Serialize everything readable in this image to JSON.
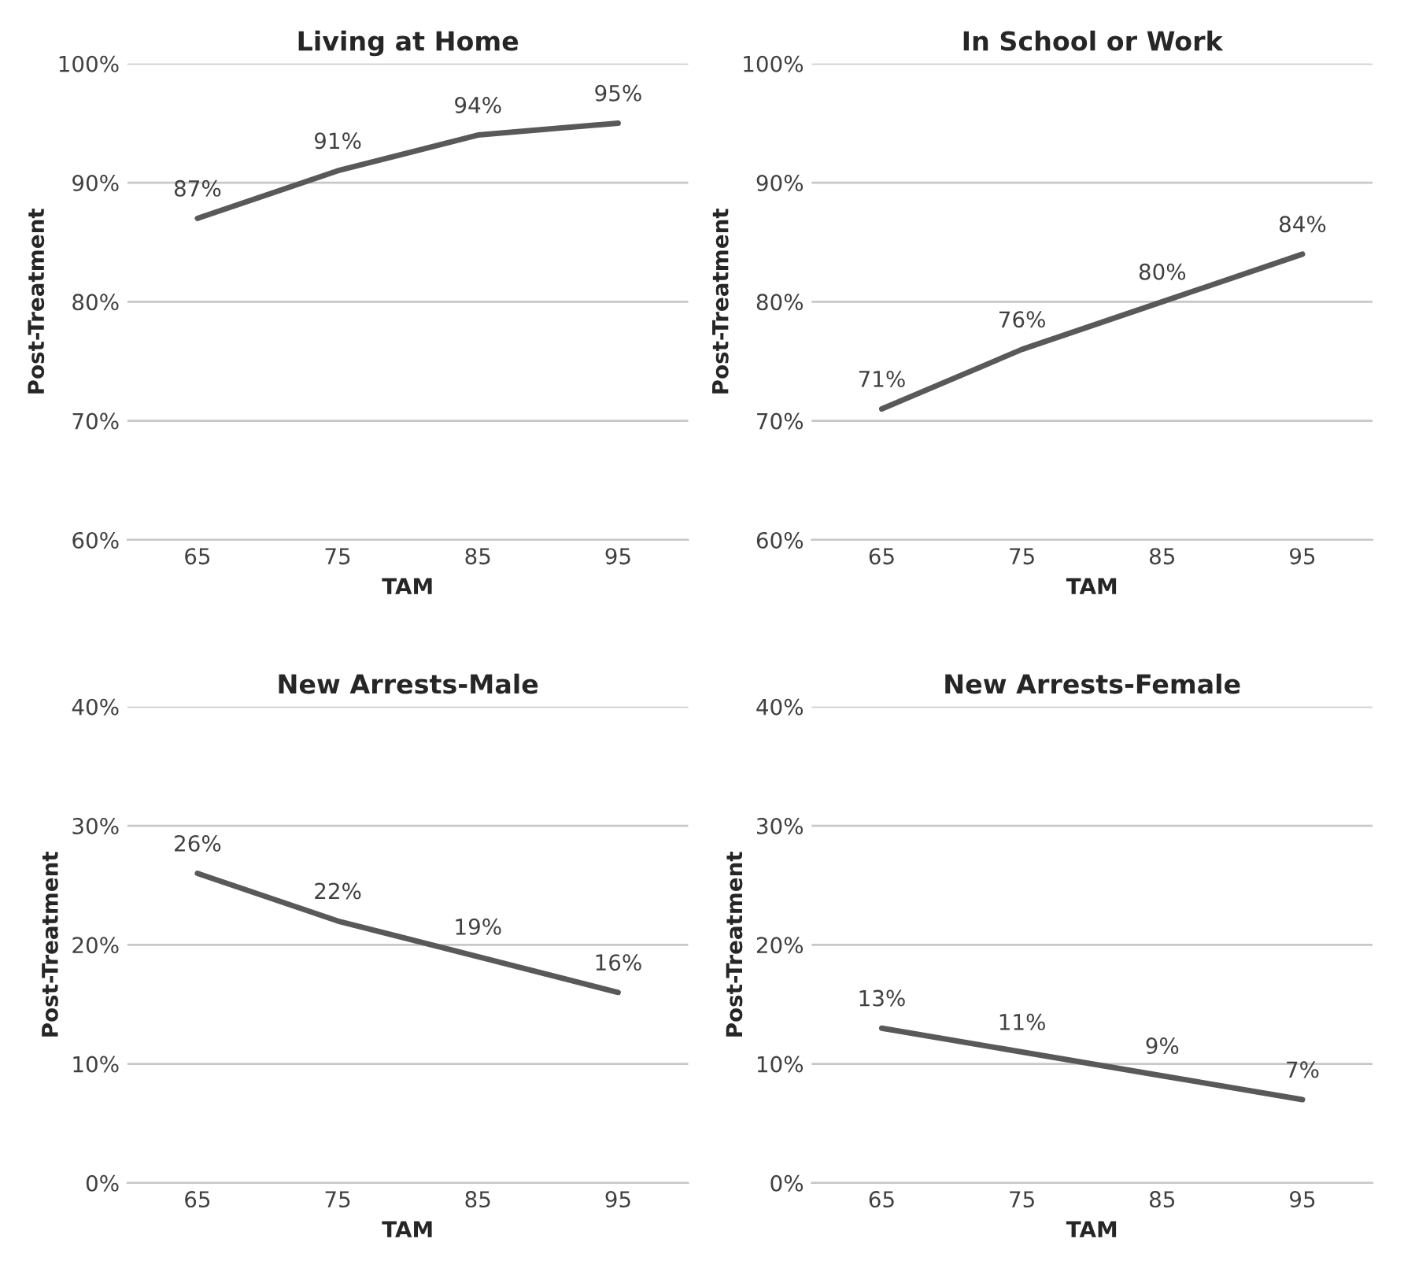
{
  "chart_data": [
    {
      "type": "line",
      "title": "Living at Home",
      "xlabel": "TAM",
      "ylabel": "Post-Treatment",
      "categories": [
        "65",
        "75",
        "85",
        "95"
      ],
      "series": [
        {
          "color": "#595959",
          "values": [
            87,
            91,
            94,
            95
          ],
          "value_labels": [
            "87%",
            "91%",
            "94%",
            "95%"
          ]
        }
      ],
      "ylim": [
        60,
        100
      ],
      "yticks": [
        {
          "value": 60,
          "label": "60%"
        },
        {
          "value": 70,
          "label": "70%"
        },
        {
          "value": 80,
          "label": "80%"
        },
        {
          "value": 90,
          "label": "90%"
        },
        {
          "value": 100,
          "label": "100%"
        }
      ],
      "grid": "y",
      "marker": "none",
      "line_style": "solid"
    },
    {
      "type": "line",
      "title": "In School or Work",
      "xlabel": "TAM",
      "ylabel": "Post-Treatment",
      "categories": [
        "65",
        "75",
        "85",
        "95"
      ],
      "series": [
        {
          "color": "#595959",
          "values": [
            71,
            76,
            80,
            84
          ],
          "value_labels": [
            "71%",
            "76%",
            "80%",
            "84%"
          ]
        }
      ],
      "ylim": [
        60,
        100
      ],
      "yticks": [
        {
          "value": 60,
          "label": "60%"
        },
        {
          "value": 70,
          "label": "70%"
        },
        {
          "value": 80,
          "label": "80%"
        },
        {
          "value": 90,
          "label": "90%"
        },
        {
          "value": 100,
          "label": "100%"
        }
      ],
      "grid": "y",
      "marker": "none",
      "line_style": "solid"
    },
    {
      "type": "line",
      "title": "New Arrests-Male",
      "xlabel": "TAM",
      "ylabel": "Post-Treatment",
      "categories": [
        "65",
        "75",
        "85",
        "95"
      ],
      "series": [
        {
          "color": "#595959",
          "values": [
            26,
            22,
            19,
            16
          ],
          "value_labels": [
            "26%",
            "22%",
            "19%",
            "16%"
          ]
        }
      ],
      "ylim": [
        0,
        40
      ],
      "yticks": [
        {
          "value": 0,
          "label": "0%"
        },
        {
          "value": 10,
          "label": "10%"
        },
        {
          "value": 20,
          "label": "20%"
        },
        {
          "value": 30,
          "label": "30%"
        },
        {
          "value": 40,
          "label": "40%"
        }
      ],
      "grid": "y",
      "marker": "none",
      "line_style": "solid"
    },
    {
      "type": "line",
      "title": "New Arrests-Female",
      "xlabel": "TAM",
      "ylabel": "Post-Treatment",
      "categories": [
        "65",
        "75",
        "85",
        "95"
      ],
      "series": [
        {
          "color": "#595959",
          "values": [
            13,
            11,
            9,
            7
          ],
          "value_labels": [
            "13%",
            "11%",
            "9%",
            "7%"
          ]
        }
      ],
      "ylim": [
        0,
        40
      ],
      "yticks": [
        {
          "value": 0,
          "label": "0%"
        },
        {
          "value": 10,
          "label": "10%"
        },
        {
          "value": 20,
          "label": "20%"
        },
        {
          "value": 30,
          "label": "30%"
        },
        {
          "value": 40,
          "label": "40%"
        }
      ],
      "grid": "y",
      "marker": "none",
      "line_style": "solid"
    }
  ]
}
